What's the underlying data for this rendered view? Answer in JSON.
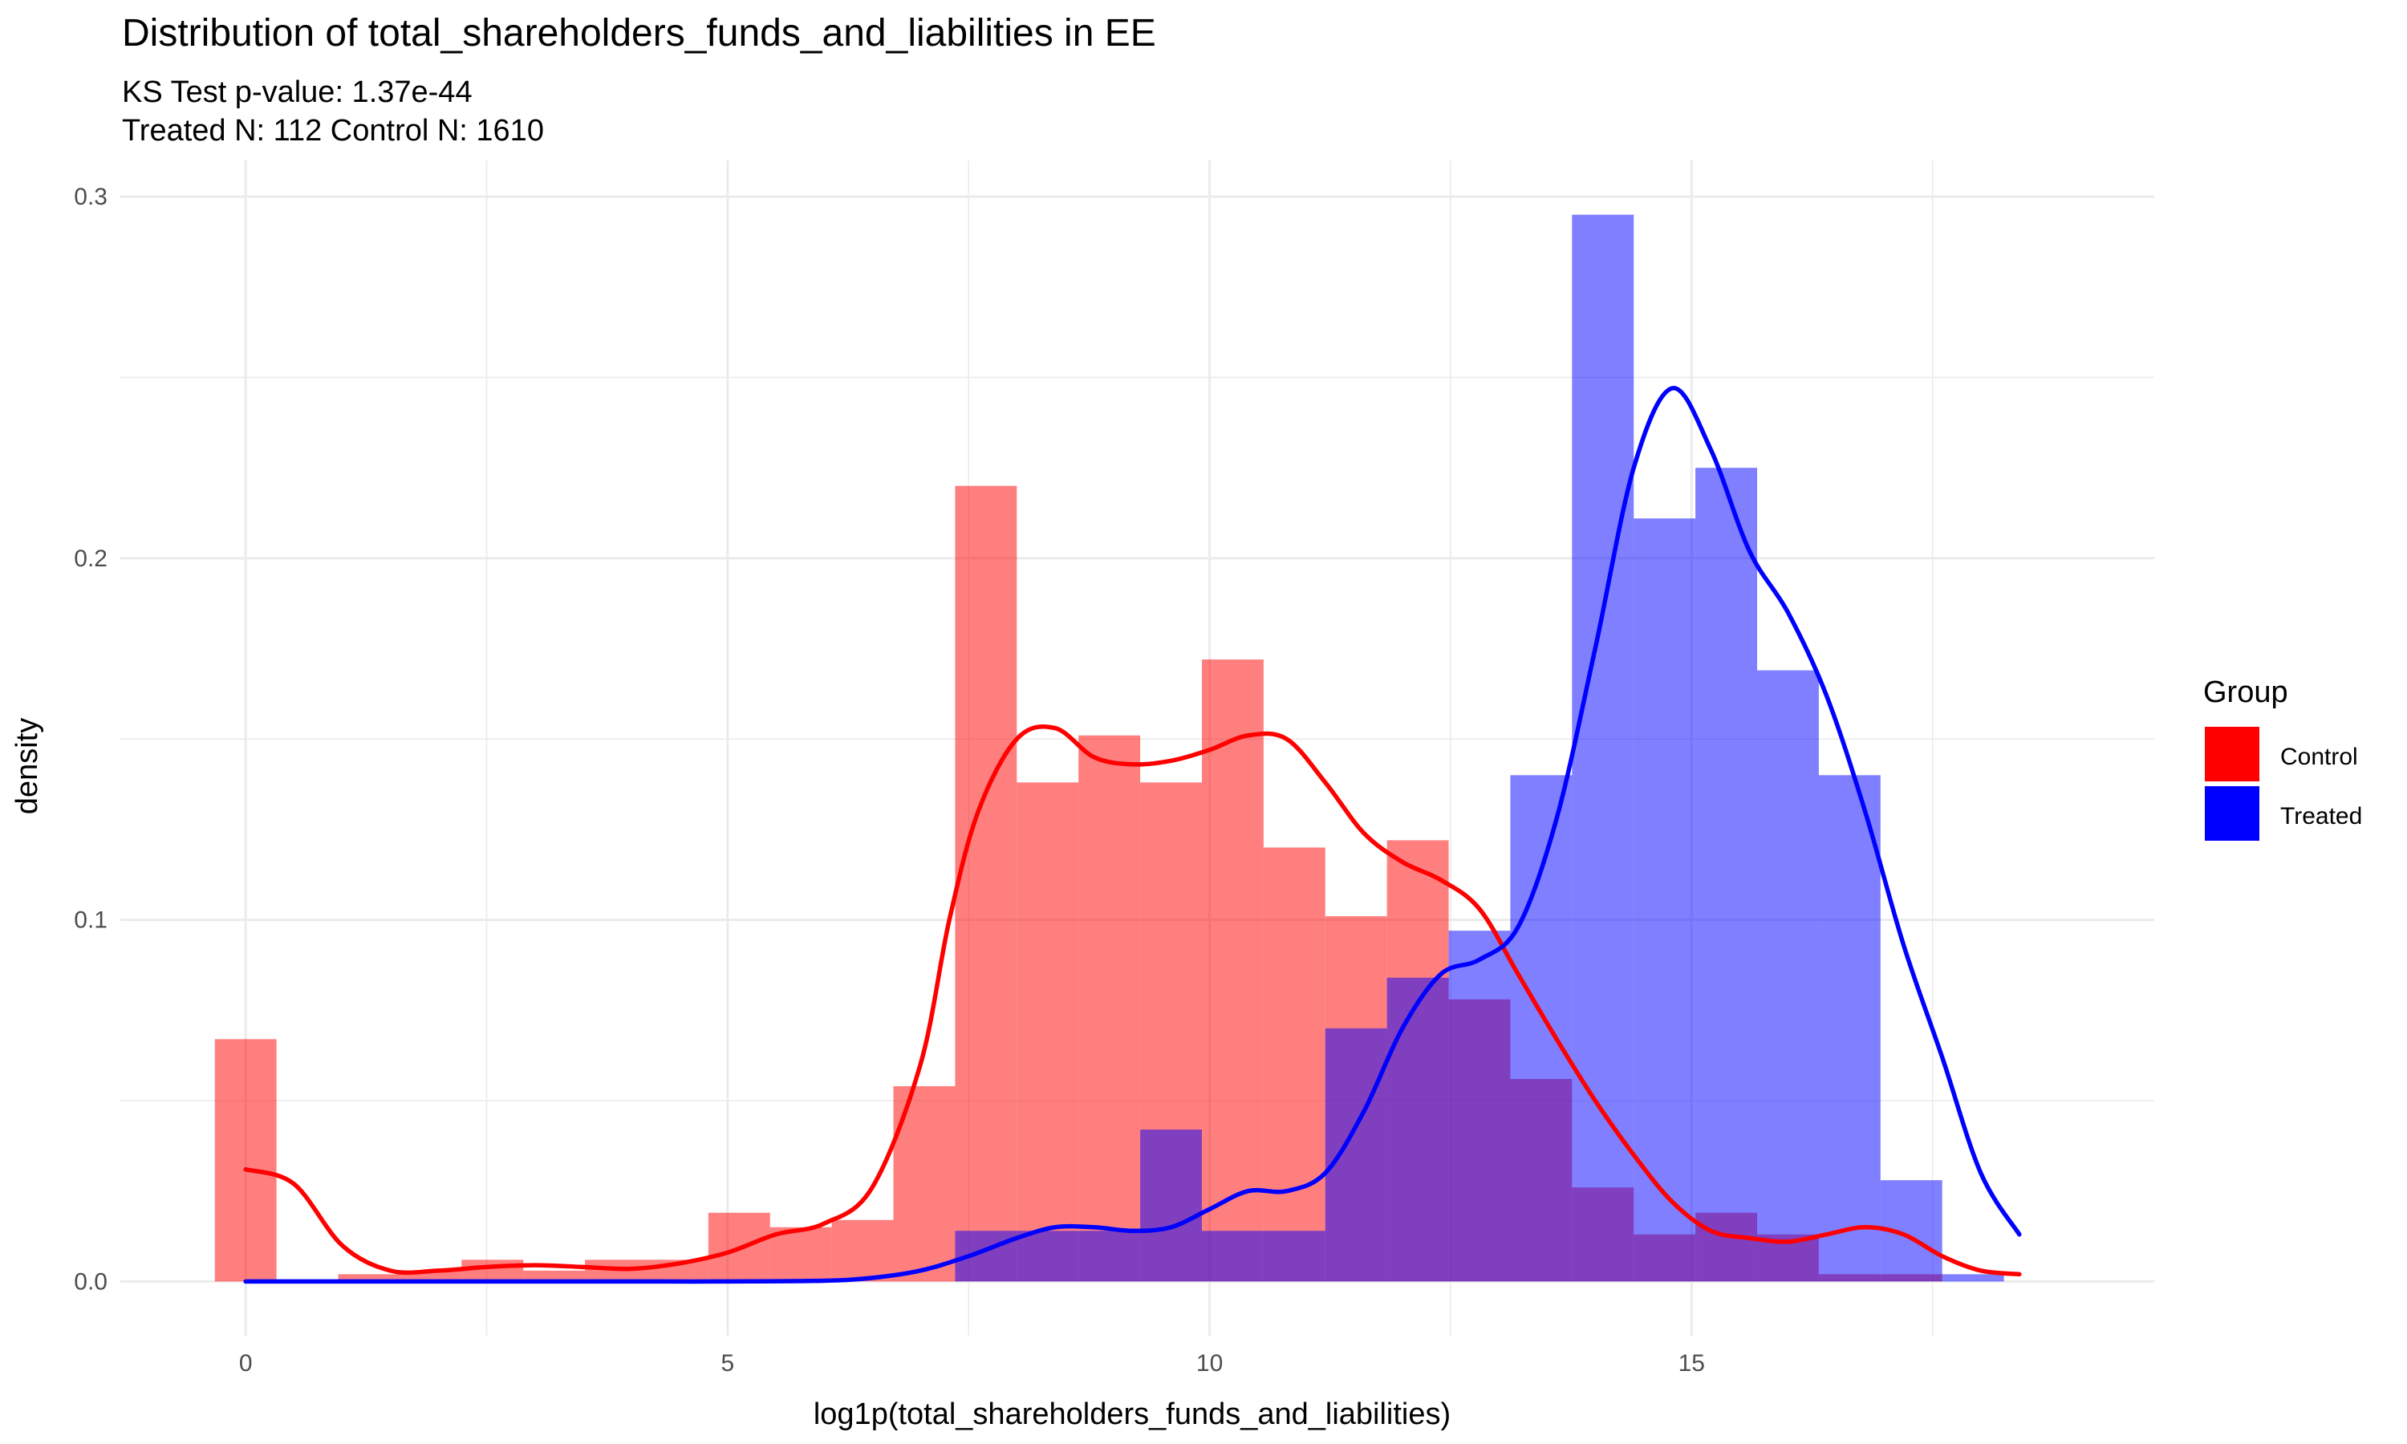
{
  "chart_data": {
    "type": "histogram",
    "title": "Distribution of total_shareholders_funds_and_liabilities in EE",
    "subtitle_lines": [
      "KS Test p-value: 1.37e-44",
      "Treated N: 112 Control N: 1610"
    ],
    "xlabel": "log1p(total_shareholders_funds_and_liabilities)",
    "ylabel": "density",
    "xlim": [
      -1.3,
      19.8
    ],
    "ylim": [
      -0.015,
      0.31
    ],
    "x_ticks": [
      0,
      5,
      10,
      15
    ],
    "x_tick_labels": [
      "0",
      "5",
      "10",
      "15"
    ],
    "y_ticks": [
      0.0,
      0.1,
      0.2,
      0.3
    ],
    "y_tick_labels": [
      "0.0",
      "0.1",
      "0.2",
      "0.3"
    ],
    "grid": true,
    "legend_position": "right",
    "legend_title": "Group",
    "bin_width": 0.64,
    "series": [
      {
        "name": "Control",
        "color": "#FF0000",
        "bin_start": -0.32,
        "bin_values": [
          0.067,
          0,
          0.002,
          0.003,
          0.006,
          0.003,
          0.006,
          0.006,
          0.019,
          0.015,
          0.017,
          0.054,
          0.22,
          0.138,
          0.151,
          0.138,
          0.172,
          0.12,
          0.101,
          0.122,
          0.078,
          0.056,
          0.026,
          0.013,
          0.019,
          0.013,
          0.002,
          0.002
        ],
        "density_curve": {
          "x": [
            0,
            0.5,
            1,
            1.5,
            2,
            2.5,
            3,
            3.5,
            4,
            4.5,
            5,
            5.5,
            6,
            6.5,
            7,
            7.3,
            7.6,
            8.0,
            8.4,
            8.8,
            9.2,
            9.6,
            10.0,
            10.4,
            10.8,
            11.2,
            11.6,
            12.0,
            12.4,
            12.8,
            13.2,
            13.6,
            14.0,
            14.4,
            14.8,
            15.2,
            15.6,
            16.0,
            16.4,
            16.8,
            17.2,
            17.6,
            18.0,
            18.4
          ],
          "y": [
            0.031,
            0.027,
            0.01,
            0.003,
            0.003,
            0.004,
            0.0045,
            0.004,
            0.0035,
            0.005,
            0.008,
            0.013,
            0.016,
            0.026,
            0.06,
            0.1,
            0.13,
            0.15,
            0.153,
            0.145,
            0.143,
            0.144,
            0.147,
            0.151,
            0.15,
            0.138,
            0.124,
            0.116,
            0.111,
            0.103,
            0.085,
            0.067,
            0.05,
            0.035,
            0.022,
            0.014,
            0.012,
            0.011,
            0.013,
            0.015,
            0.013,
            0.007,
            0.003,
            0.002
          ]
        }
      },
      {
        "name": "Treated",
        "color": "#0000FF",
        "bin_start": 7.36,
        "bin_values": [
          0.014,
          0.014,
          0.014,
          0.042,
          0.014,
          0.014,
          0.07,
          0.084,
          0.097,
          0.14,
          0.295,
          0.211,
          0.225,
          0.169,
          0.14,
          0.028,
          0.002
        ],
        "density_curve": {
          "x": [
            0,
            1,
            2,
            3,
            4,
            5,
            6,
            6.5,
            7,
            7.5,
            8.0,
            8.4,
            8.8,
            9.2,
            9.6,
            10.0,
            10.4,
            10.8,
            11.2,
            11.6,
            12.0,
            12.4,
            12.8,
            13.2,
            13.6,
            14.0,
            14.4,
            14.8,
            15.2,
            15.6,
            16.0,
            16.4,
            16.8,
            17.2,
            17.6,
            18.0,
            18.4
          ],
          "y": [
            0,
            0,
            0,
            0,
            0,
            0,
            0.0002,
            0.001,
            0.003,
            0.007,
            0.012,
            0.015,
            0.015,
            0.014,
            0.015,
            0.02,
            0.025,
            0.025,
            0.03,
            0.047,
            0.07,
            0.085,
            0.089,
            0.098,
            0.128,
            0.175,
            0.225,
            0.247,
            0.23,
            0.202,
            0.185,
            0.162,
            0.13,
            0.093,
            0.062,
            0.03,
            0.013
          ]
        }
      }
    ]
  }
}
